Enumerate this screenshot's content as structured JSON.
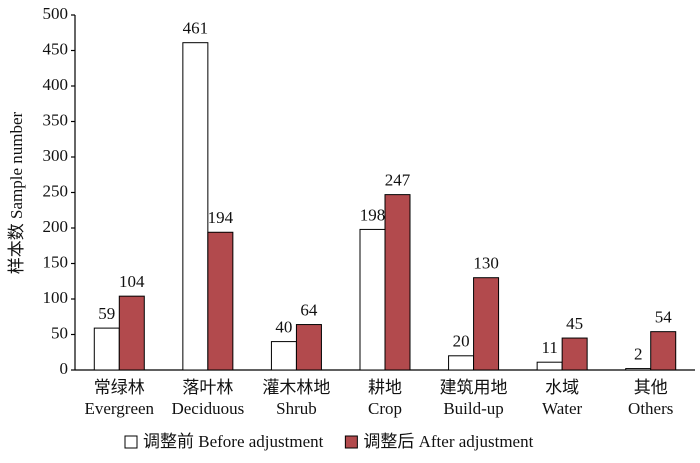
{
  "chart_data": {
    "type": "bar",
    "ylabel": "样本数 Sample number",
    "categories": [
      [
        "常绿林",
        "Evergreen"
      ],
      [
        "落叶林",
        "Deciduous"
      ],
      [
        "灌木林地",
        "Shrub"
      ],
      [
        "耕地",
        "Crop"
      ],
      [
        "建筑用地",
        "Build-up"
      ],
      [
        "水域",
        "Water"
      ],
      [
        "其他",
        "Others"
      ]
    ],
    "series": [
      {
        "name": "调整前 Before adjustment",
        "color": "#ffffff",
        "values": [
          59,
          461,
          40,
          198,
          20,
          11,
          2
        ]
      },
      {
        "name": "调整后 After adjustment",
        "color": "#b24a4d",
        "values": [
          104,
          194,
          64,
          247,
          130,
          45,
          54
        ]
      }
    ],
    "ylim": [
      0,
      500
    ],
    "yticks": [
      0,
      50,
      100,
      150,
      200,
      250,
      300,
      350,
      400,
      450,
      500
    ],
    "grid": false
  }
}
